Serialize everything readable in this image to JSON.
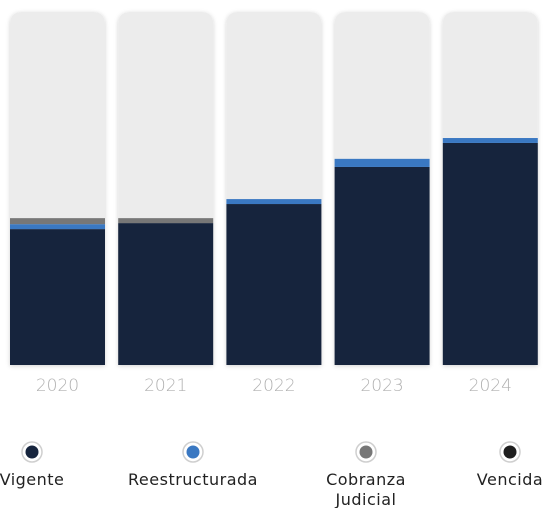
{
  "chart_data": {
    "type": "stacked-bar",
    "categories": [
      "2020",
      "2021",
      "2022",
      "2023",
      "2024"
    ],
    "ylim": [
      0,
      100
    ],
    "series": [
      {
        "name": "Vigente",
        "color": "#16243d",
        "values": [
          38.5,
          40.2,
          45.6,
          56.1,
          62.9
        ]
      },
      {
        "name": "Reestructurada",
        "color": "#3a78c2",
        "values": [
          1.4,
          0,
          1.4,
          2.3,
          1.4
        ]
      },
      {
        "name": "Cobranza Judicial",
        "color": "#777777",
        "values": [
          1.7,
          1.4,
          0,
          0,
          0
        ]
      },
      {
        "name": "Vencida",
        "color": "#1e1e1e",
        "values": [
          0,
          0,
          0,
          0,
          0
        ]
      }
    ]
  }
}
